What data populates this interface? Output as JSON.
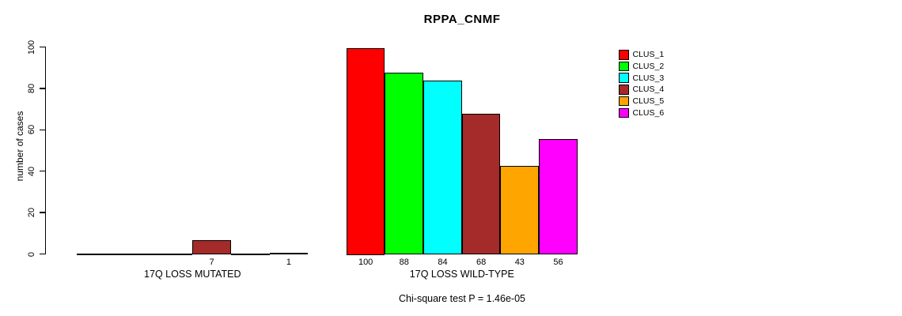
{
  "chart_data": {
    "type": "bar",
    "title": "RPPA_CNMF",
    "ylabel": "number of cases",
    "ylim": [
      0,
      100
    ],
    "yticks": [
      0,
      20,
      40,
      60,
      80,
      100
    ],
    "grid": false,
    "legend_position": "right",
    "categories": [
      "17Q LOSS MUTATED",
      "17Q LOSS WILD-TYPE"
    ],
    "series": [
      {
        "name": "CLUS_1",
        "color": "#FF0000",
        "values": [
          0,
          100
        ]
      },
      {
        "name": "CLUS_2",
        "color": "#00FF00",
        "values": [
          0,
          88
        ]
      },
      {
        "name": "CLUS_3",
        "color": "#00FFFF",
        "values": [
          0,
          84
        ]
      },
      {
        "name": "CLUS_4",
        "color": "#A52A2A",
        "values": [
          7,
          68
        ]
      },
      {
        "name": "CLUS_5",
        "color": "#FFA500",
        "values": [
          0,
          43
        ]
      },
      {
        "name": "CLUS_6",
        "color": "#FF00FF",
        "values": [
          1,
          56
        ]
      }
    ],
    "groups": [
      {
        "label": "17Q LOSS MUTATED",
        "values": [
          0,
          0,
          0,
          7,
          0,
          1
        ],
        "bar_labels": [
          "",
          "",
          "",
          "7",
          "",
          "1"
        ]
      },
      {
        "label": "17Q LOSS WILD-TYPE",
        "values": [
          100,
          88,
          84,
          68,
          43,
          56
        ],
        "bar_labels": [
          "100",
          "88",
          "84",
          "68",
          "43",
          "56"
        ]
      }
    ],
    "annotation": "Chi-square test P = 1.46e-05"
  }
}
